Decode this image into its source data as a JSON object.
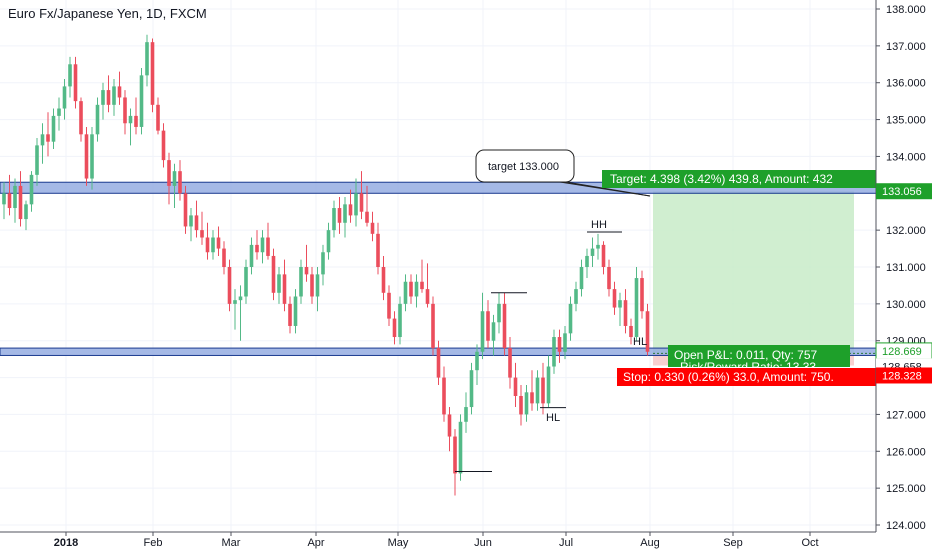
{
  "chart_data": {
    "type": "candlestick",
    "title": "Euro Fx/Japanese Yen, 1D, FXCM",
    "y_ticks": [
      "138.000",
      "137.000",
      "136.000",
      "135.000",
      "134.000",
      "133.000",
      "132.000",
      "131.000",
      "130.000",
      "129.000",
      "128.000",
      "127.000",
      "126.000",
      "125.000",
      "124.000"
    ],
    "ylim": [
      124,
      138
    ],
    "x_ticks": [
      {
        "label": "2018",
        "bold": true
      },
      {
        "label": "Feb",
        "bold": false
      },
      {
        "label": "Mar",
        "bold": false
      },
      {
        "label": "Apr",
        "bold": false
      },
      {
        "label": "May",
        "bold": false
      },
      {
        "label": "Jun",
        "bold": false
      },
      {
        "label": "Jul",
        "bold": false
      },
      {
        "label": "Aug",
        "bold": false
      },
      {
        "label": "Sep",
        "bold": false
      },
      {
        "label": "Oct",
        "bold": false
      }
    ],
    "colors": {
      "up": "#53b987",
      "down": "#eb4d5c",
      "zone_fill": "#8fa8e0",
      "zone_stroke": "#1a3a8f",
      "target_fill": "#c8ebc8",
      "target_label": "#1ea02a",
      "stop_label": "#ff0000",
      "grid": "#f0f3fa"
    },
    "zones": [
      {
        "name": "resistance",
        "from": 133.0,
        "to": 133.3
      },
      {
        "name": "support",
        "from": 128.6,
        "to": 128.8
      }
    ],
    "position": {
      "entry": 128.658,
      "target": 133.056,
      "stop": 128.328,
      "target_text": "Target: 4.398 (3.42%) 439.8, Amount: 432",
      "open_text": "Open P&L: 0.011, Qty: 757",
      "rr_text": "Risk/Reward Ratio: 13.33",
      "stop_text": "Stop: 0.330 (0.26%) 33.0, Amount: 750."
    },
    "price_labels": [
      {
        "value": "133.056",
        "kind": "target"
      },
      {
        "value": "128.669",
        "kind": "current"
      },
      {
        "value": "128.658",
        "kind": "entry"
      },
      {
        "value": "128.328",
        "kind": "stop"
      }
    ],
    "callout": "target 133.000",
    "annotations": [
      {
        "text": "HH",
        "price": 131.95
      },
      {
        "text": "HL",
        "price": 128.85
      },
      {
        "text": "HL",
        "price": 127.2
      }
    ],
    "candles": [
      {
        "o": 132.7,
        "h": 133.3,
        "l": 132.3,
        "c": 133.0
      },
      {
        "o": 133.0,
        "h": 133.5,
        "l": 132.4,
        "c": 132.6
      },
      {
        "o": 132.6,
        "h": 133.4,
        "l": 132.2,
        "c": 133.2
      },
      {
        "o": 133.2,
        "h": 133.6,
        "l": 132.1,
        "c": 132.3
      },
      {
        "o": 132.3,
        "h": 132.8,
        "l": 132.0,
        "c": 132.7
      },
      {
        "o": 132.7,
        "h": 133.6,
        "l": 132.5,
        "c": 133.5
      },
      {
        "o": 133.5,
        "h": 134.5,
        "l": 133.2,
        "c": 134.3
      },
      {
        "o": 134.3,
        "h": 134.9,
        "l": 133.8,
        "c": 134.6
      },
      {
        "o": 134.6,
        "h": 135.2,
        "l": 134.0,
        "c": 134.4
      },
      {
        "o": 134.4,
        "h": 135.3,
        "l": 134.2,
        "c": 135.1
      },
      {
        "o": 135.1,
        "h": 135.6,
        "l": 134.7,
        "c": 135.3
      },
      {
        "o": 135.3,
        "h": 136.1,
        "l": 135.0,
        "c": 135.9
      },
      {
        "o": 135.9,
        "h": 136.7,
        "l": 135.6,
        "c": 136.5
      },
      {
        "o": 136.5,
        "h": 136.7,
        "l": 135.3,
        "c": 135.5
      },
      {
        "o": 135.5,
        "h": 135.6,
        "l": 134.4,
        "c": 134.6
      },
      {
        "o": 134.6,
        "h": 134.8,
        "l": 133.2,
        "c": 133.4
      },
      {
        "o": 133.4,
        "h": 134.8,
        "l": 133.1,
        "c": 134.6
      },
      {
        "o": 134.6,
        "h": 135.6,
        "l": 134.4,
        "c": 135.4
      },
      {
        "o": 135.4,
        "h": 136.0,
        "l": 135.0,
        "c": 135.8
      },
      {
        "o": 135.8,
        "h": 136.2,
        "l": 135.2,
        "c": 135.4
      },
      {
        "o": 135.4,
        "h": 136.1,
        "l": 135.1,
        "c": 135.9
      },
      {
        "o": 135.9,
        "h": 136.3,
        "l": 135.4,
        "c": 135.6
      },
      {
        "o": 135.6,
        "h": 135.8,
        "l": 134.6,
        "c": 134.9
      },
      {
        "o": 134.9,
        "h": 135.3,
        "l": 134.3,
        "c": 135.1
      },
      {
        "o": 135.1,
        "h": 135.6,
        "l": 134.6,
        "c": 134.8
      },
      {
        "o": 134.8,
        "h": 136.4,
        "l": 134.6,
        "c": 136.2
      },
      {
        "o": 136.2,
        "h": 137.3,
        "l": 135.9,
        "c": 137.1
      },
      {
        "o": 137.1,
        "h": 137.2,
        "l": 135.2,
        "c": 135.4
      },
      {
        "o": 135.4,
        "h": 135.6,
        "l": 134.6,
        "c": 134.7
      },
      {
        "o": 134.7,
        "h": 134.9,
        "l": 133.7,
        "c": 133.9
      },
      {
        "o": 133.9,
        "h": 134.1,
        "l": 132.7,
        "c": 133.2
      },
      {
        "o": 133.2,
        "h": 133.8,
        "l": 132.6,
        "c": 133.6
      },
      {
        "o": 133.6,
        "h": 133.9,
        "l": 132.8,
        "c": 133.0
      },
      {
        "o": 133.0,
        "h": 133.2,
        "l": 131.9,
        "c": 132.1
      },
      {
        "o": 132.1,
        "h": 132.6,
        "l": 131.7,
        "c": 132.4
      },
      {
        "o": 132.4,
        "h": 132.8,
        "l": 131.8,
        "c": 132.0
      },
      {
        "o": 132.0,
        "h": 132.5,
        "l": 131.6,
        "c": 131.8
      },
      {
        "o": 131.8,
        "h": 132.2,
        "l": 131.2,
        "c": 131.4
      },
      {
        "o": 131.4,
        "h": 132.0,
        "l": 131.2,
        "c": 131.8
      },
      {
        "o": 131.8,
        "h": 132.1,
        "l": 131.3,
        "c": 131.5
      },
      {
        "o": 131.5,
        "h": 131.7,
        "l": 130.8,
        "c": 131.0
      },
      {
        "o": 131.0,
        "h": 131.2,
        "l": 129.8,
        "c": 130.0
      },
      {
        "o": 130.0,
        "h": 130.4,
        "l": 129.3,
        "c": 130.1
      },
      {
        "o": 130.1,
        "h": 130.5,
        "l": 129.0,
        "c": 130.2
      },
      {
        "o": 130.2,
        "h": 131.2,
        "l": 130.0,
        "c": 131.0
      },
      {
        "o": 131.0,
        "h": 131.8,
        "l": 130.8,
        "c": 131.6
      },
      {
        "o": 131.6,
        "h": 132.0,
        "l": 131.2,
        "c": 131.4
      },
      {
        "o": 131.4,
        "h": 132.0,
        "l": 131.1,
        "c": 131.8
      },
      {
        "o": 131.8,
        "h": 132.2,
        "l": 131.2,
        "c": 131.3
      },
      {
        "o": 131.3,
        "h": 131.5,
        "l": 130.1,
        "c": 130.3
      },
      {
        "o": 130.3,
        "h": 131.0,
        "l": 130.0,
        "c": 130.8
      },
      {
        "o": 130.8,
        "h": 131.2,
        "l": 129.8,
        "c": 130.0
      },
      {
        "o": 130.0,
        "h": 130.2,
        "l": 129.2,
        "c": 129.4
      },
      {
        "o": 129.4,
        "h": 130.4,
        "l": 129.2,
        "c": 130.2
      },
      {
        "o": 130.2,
        "h": 131.2,
        "l": 130.0,
        "c": 131.0
      },
      {
        "o": 131.0,
        "h": 131.6,
        "l": 130.6,
        "c": 130.8
      },
      {
        "o": 130.8,
        "h": 131.0,
        "l": 130.0,
        "c": 130.2
      },
      {
        "o": 130.2,
        "h": 131.0,
        "l": 129.8,
        "c": 130.8
      },
      {
        "o": 130.8,
        "h": 131.6,
        "l": 130.5,
        "c": 131.4
      },
      {
        "o": 131.4,
        "h": 132.2,
        "l": 131.2,
        "c": 132.0
      },
      {
        "o": 132.0,
        "h": 132.8,
        "l": 131.8,
        "c": 132.6
      },
      {
        "o": 132.6,
        "h": 132.9,
        "l": 131.9,
        "c": 132.2
      },
      {
        "o": 132.2,
        "h": 132.9,
        "l": 131.8,
        "c": 132.7
      },
      {
        "o": 132.7,
        "h": 133.1,
        "l": 132.2,
        "c": 132.4
      },
      {
        "o": 132.4,
        "h": 133.4,
        "l": 132.1,
        "c": 133.0
      },
      {
        "o": 133.0,
        "h": 133.6,
        "l": 132.3,
        "c": 132.5
      },
      {
        "o": 132.5,
        "h": 133.2,
        "l": 132.1,
        "c": 132.2
      },
      {
        "o": 132.2,
        "h": 132.5,
        "l": 131.7,
        "c": 131.9
      },
      {
        "o": 131.9,
        "h": 132.2,
        "l": 130.8,
        "c": 131.0
      },
      {
        "o": 131.0,
        "h": 131.3,
        "l": 130.1,
        "c": 130.3
      },
      {
        "o": 130.3,
        "h": 130.5,
        "l": 129.4,
        "c": 129.6
      },
      {
        "o": 129.6,
        "h": 129.8,
        "l": 128.9,
        "c": 129.1
      },
      {
        "o": 129.1,
        "h": 130.2,
        "l": 128.9,
        "c": 130.0
      },
      {
        "o": 130.0,
        "h": 130.8,
        "l": 129.8,
        "c": 130.6
      },
      {
        "o": 130.6,
        "h": 130.8,
        "l": 130.0,
        "c": 130.2
      },
      {
        "o": 130.2,
        "h": 130.8,
        "l": 129.9,
        "c": 130.6
      },
      {
        "o": 130.6,
        "h": 131.2,
        "l": 130.3,
        "c": 130.4
      },
      {
        "o": 130.4,
        "h": 131.1,
        "l": 129.9,
        "c": 130.0
      },
      {
        "o": 130.0,
        "h": 130.2,
        "l": 128.6,
        "c": 128.8
      },
      {
        "o": 128.8,
        "h": 129.0,
        "l": 127.8,
        "c": 128.0
      },
      {
        "o": 128.0,
        "h": 128.3,
        "l": 126.8,
        "c": 127.0
      },
      {
        "o": 127.0,
        "h": 127.2,
        "l": 126.0,
        "c": 126.4
      },
      {
        "o": 126.4,
        "h": 126.6,
        "l": 124.8,
        "c": 125.4
      },
      {
        "o": 125.4,
        "h": 127.0,
        "l": 125.2,
        "c": 126.8
      },
      {
        "o": 126.8,
        "h": 127.6,
        "l": 126.5,
        "c": 127.2
      },
      {
        "o": 127.2,
        "h": 128.4,
        "l": 127.0,
        "c": 128.2
      },
      {
        "o": 128.2,
        "h": 128.9,
        "l": 127.8,
        "c": 128.7
      },
      {
        "o": 128.7,
        "h": 130.3,
        "l": 128.5,
        "c": 129.8
      },
      {
        "o": 129.8,
        "h": 130.1,
        "l": 128.8,
        "c": 129.0
      },
      {
        "o": 129.0,
        "h": 129.7,
        "l": 128.6,
        "c": 129.5
      },
      {
        "o": 129.5,
        "h": 130.3,
        "l": 129.2,
        "c": 130.0
      },
      {
        "o": 130.0,
        "h": 130.3,
        "l": 128.6,
        "c": 128.8
      },
      {
        "o": 128.8,
        "h": 129.1,
        "l": 127.7,
        "c": 128.0
      },
      {
        "o": 128.0,
        "h": 128.4,
        "l": 127.2,
        "c": 127.5
      },
      {
        "o": 127.5,
        "h": 127.8,
        "l": 126.7,
        "c": 127.0
      },
      {
        "o": 127.0,
        "h": 127.8,
        "l": 126.8,
        "c": 127.6
      },
      {
        "o": 127.6,
        "h": 128.2,
        "l": 127.1,
        "c": 127.3
      },
      {
        "o": 127.3,
        "h": 128.2,
        "l": 127.1,
        "c": 128.0
      },
      {
        "o": 128.0,
        "h": 128.4,
        "l": 127.0,
        "c": 127.3
      },
      {
        "o": 127.3,
        "h": 128.6,
        "l": 127.2,
        "c": 128.3
      },
      {
        "o": 128.3,
        "h": 129.3,
        "l": 128.1,
        "c": 129.1
      },
      {
        "o": 129.1,
        "h": 129.3,
        "l": 128.4,
        "c": 128.7
      },
      {
        "o": 128.7,
        "h": 129.4,
        "l": 128.5,
        "c": 129.2
      },
      {
        "o": 129.2,
        "h": 130.2,
        "l": 129.0,
        "c": 130.0
      },
      {
        "o": 130.0,
        "h": 130.6,
        "l": 129.8,
        "c": 130.4
      },
      {
        "o": 130.4,
        "h": 131.2,
        "l": 130.2,
        "c": 131.0
      },
      {
        "o": 131.0,
        "h": 131.5,
        "l": 130.7,
        "c": 131.3
      },
      {
        "o": 131.3,
        "h": 131.8,
        "l": 131.0,
        "c": 131.5
      },
      {
        "o": 131.5,
        "h": 131.9,
        "l": 131.2,
        "c": 131.6
      },
      {
        "o": 131.6,
        "h": 131.7,
        "l": 130.8,
        "c": 131.0
      },
      {
        "o": 131.0,
        "h": 131.2,
        "l": 130.2,
        "c": 130.4
      },
      {
        "o": 130.4,
        "h": 130.6,
        "l": 129.7,
        "c": 129.9
      },
      {
        "o": 129.9,
        "h": 130.3,
        "l": 129.4,
        "c": 130.1
      },
      {
        "o": 130.1,
        "h": 130.4,
        "l": 129.2,
        "c": 129.4
      },
      {
        "o": 129.4,
        "h": 129.6,
        "l": 128.9,
        "c": 129.1
      },
      {
        "o": 129.1,
        "h": 131.0,
        "l": 129.0,
        "c": 130.7
      },
      {
        "o": 130.7,
        "h": 130.9,
        "l": 129.6,
        "c": 129.8
      },
      {
        "o": 129.8,
        "h": 130.0,
        "l": 128.6,
        "c": 128.7
      }
    ]
  }
}
